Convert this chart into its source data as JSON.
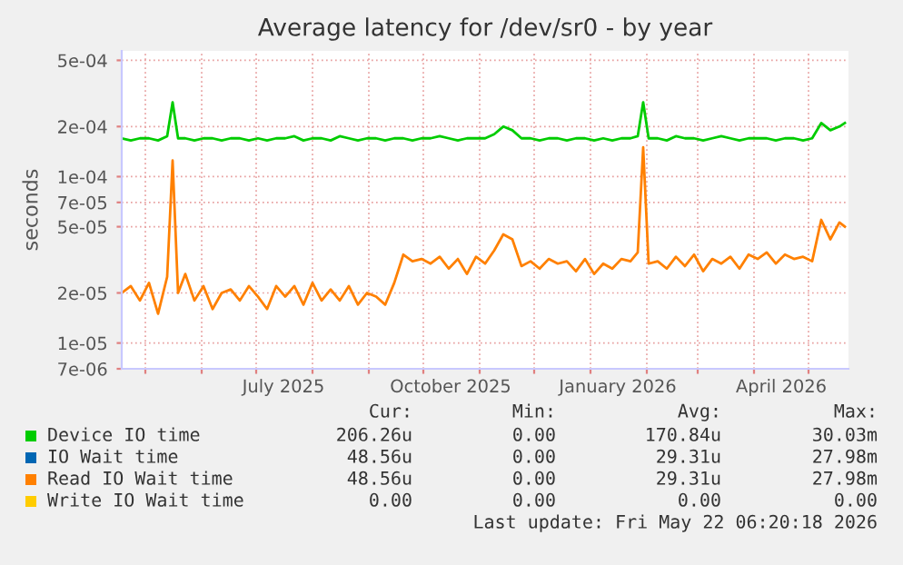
{
  "chart_data": {
    "type": "line",
    "title": "Average latency for /dev/sr0 - by year",
    "ylabel": "seconds",
    "log": "y",
    "grid": true,
    "legend": "bottom",
    "marker": "none",
    "line_style": "solid",
    "xlim": [
      "2025-04-18",
      "2026-05-23"
    ],
    "ylim": [
      7e-06,
      0.00057
    ],
    "xticks": [
      {
        "value": "2025-05-01",
        "label": null
      },
      {
        "value": "2025-06-01",
        "label": null
      },
      {
        "value": "2025-07-01",
        "label": null
      },
      {
        "value": "2025-08-01",
        "label": null
      },
      {
        "value": "2025-09-01",
        "label": null
      },
      {
        "value": "2025-10-01",
        "label": null
      },
      {
        "value": "2025-11-01",
        "label": null
      },
      {
        "value": "2025-12-01",
        "label": null
      },
      {
        "value": "2026-01-01",
        "label": null
      },
      {
        "value": "2026-02-01",
        "label": null
      },
      {
        "value": "2026-03-01",
        "label": null
      },
      {
        "value": "2026-04-01",
        "label": null
      },
      {
        "value": "2026-05-01",
        "label": null
      },
      {
        "value": "2025-07-16",
        "label": "July 2025"
      },
      {
        "value": "2025-10-16",
        "label": "October 2025"
      },
      {
        "value": "2026-01-16",
        "label": "January 2026"
      },
      {
        "value": "2026-04-16",
        "label": "April 2026"
      }
    ],
    "yticks": [
      {
        "value": 7e-06,
        "label": "7e-06"
      },
      {
        "value": 1e-05,
        "label": "1e-05"
      },
      {
        "value": 2e-05,
        "label": "2e-05"
      },
      {
        "value": 5e-05,
        "label": "5e-05"
      },
      {
        "value": 7e-05,
        "label": "7e-05"
      },
      {
        "value": 0.0001,
        "label": "1e-04"
      },
      {
        "value": 0.0002,
        "label": "2e-04"
      },
      {
        "value": 0.0005,
        "label": "5e-04"
      }
    ],
    "x": [
      "2025-04-18",
      "2025-04-23",
      "2025-04-28",
      "2025-05-03",
      "2025-05-08",
      "2025-05-13",
      "2025-05-16",
      "2025-05-19",
      "2025-05-23",
      "2025-05-28",
      "2025-06-02",
      "2025-06-07",
      "2025-06-12",
      "2025-06-17",
      "2025-06-22",
      "2025-06-27",
      "2025-07-02",
      "2025-07-07",
      "2025-07-12",
      "2025-07-17",
      "2025-07-22",
      "2025-07-27",
      "2025-08-01",
      "2025-08-06",
      "2025-08-11",
      "2025-08-16",
      "2025-08-21",
      "2025-08-26",
      "2025-08-31",
      "2025-09-05",
      "2025-09-10",
      "2025-09-15",
      "2025-09-20",
      "2025-09-25",
      "2025-09-30",
      "2025-10-05",
      "2025-10-10",
      "2025-10-15",
      "2025-10-20",
      "2025-10-25",
      "2025-10-30",
      "2025-11-04",
      "2025-11-09",
      "2025-11-14",
      "2025-11-19",
      "2025-11-24",
      "2025-11-29",
      "2025-12-04",
      "2025-12-09",
      "2025-12-14",
      "2025-12-19",
      "2025-12-24",
      "2025-12-29",
      "2026-01-03",
      "2026-01-08",
      "2026-01-13",
      "2026-01-18",
      "2026-01-23",
      "2026-01-27",
      "2026-01-30",
      "2026-02-02",
      "2026-02-07",
      "2026-02-12",
      "2026-02-17",
      "2026-02-22",
      "2026-02-27",
      "2026-03-04",
      "2026-03-09",
      "2026-03-14",
      "2026-03-19",
      "2026-03-24",
      "2026-03-29",
      "2026-04-03",
      "2026-04-08",
      "2026-04-13",
      "2026-04-18",
      "2026-04-23",
      "2026-04-28",
      "2026-05-03",
      "2026-05-08",
      "2026-05-13",
      "2026-05-18",
      "2026-05-21"
    ],
    "series": [
      {
        "name": "Device IO time",
        "color": "#00cc00",
        "values": [
          0.00017,
          0.000165,
          0.00017,
          0.00017,
          0.000165,
          0.000175,
          0.00028,
          0.00017,
          0.00017,
          0.000165,
          0.00017,
          0.00017,
          0.000165,
          0.00017,
          0.00017,
          0.000165,
          0.00017,
          0.000165,
          0.00017,
          0.00017,
          0.000175,
          0.000165,
          0.00017,
          0.00017,
          0.000165,
          0.000175,
          0.00017,
          0.000165,
          0.00017,
          0.00017,
          0.000165,
          0.00017,
          0.00017,
          0.000165,
          0.00017,
          0.00017,
          0.000175,
          0.00017,
          0.000165,
          0.00017,
          0.00017,
          0.00017,
          0.00018,
          0.0002,
          0.00019,
          0.00017,
          0.00017,
          0.000165,
          0.00017,
          0.00017,
          0.000165,
          0.00017,
          0.00017,
          0.000165,
          0.00017,
          0.000165,
          0.00017,
          0.00017,
          0.000175,
          0.00028,
          0.00017,
          0.00017,
          0.000165,
          0.000175,
          0.00017,
          0.00017,
          0.000165,
          0.00017,
          0.000175,
          0.00017,
          0.000165,
          0.00017,
          0.00017,
          0.00017,
          0.000165,
          0.00017,
          0.00017,
          0.000165,
          0.00017,
          0.00021,
          0.00019,
          0.0002,
          0.00021
        ]
      },
      {
        "name": "IO Wait time",
        "color": "#0066b3",
        "values": [
          null,
          null,
          null,
          null,
          null,
          null,
          null,
          null,
          null,
          null,
          null,
          null,
          null,
          null,
          null,
          null,
          null,
          null,
          null,
          null,
          null,
          null,
          null,
          null,
          null,
          null,
          null,
          null,
          null,
          null,
          null,
          null,
          null,
          null,
          null,
          null,
          null,
          null,
          null,
          null,
          null,
          null,
          null,
          null,
          null,
          null,
          null,
          null,
          null,
          null,
          null,
          null,
          null,
          null,
          null,
          null,
          null,
          null,
          null,
          null,
          null,
          null,
          null,
          null,
          null,
          null,
          null,
          null,
          null,
          null,
          null,
          null,
          null,
          null,
          null,
          null,
          null,
          null,
          null,
          null,
          null,
          null,
          null
        ]
      },
      {
        "name": "Read IO Wait time",
        "color": "#ff8000",
        "values": [
          2e-05,
          2.2e-05,
          1.8e-05,
          2.3e-05,
          1.5e-05,
          2.5e-05,
          0.000125,
          2e-05,
          2.6e-05,
          1.8e-05,
          2.2e-05,
          1.6e-05,
          2e-05,
          2.1e-05,
          1.8e-05,
          2.2e-05,
          1.9e-05,
          1.6e-05,
          2.2e-05,
          1.9e-05,
          2.2e-05,
          1.7e-05,
          2.3e-05,
          1.8e-05,
          2.1e-05,
          1.8e-05,
          2.2e-05,
          1.7e-05,
          2e-05,
          1.9e-05,
          1.7e-05,
          2.3e-05,
          3.4e-05,
          3.1e-05,
          3.2e-05,
          3e-05,
          3.3e-05,
          2.8e-05,
          3.2e-05,
          2.6e-05,
          3.3e-05,
          3e-05,
          3.6e-05,
          4.5e-05,
          4.2e-05,
          2.9e-05,
          3.1e-05,
          2.8e-05,
          3.2e-05,
          3e-05,
          3.1e-05,
          2.7e-05,
          3.2e-05,
          2.6e-05,
          3e-05,
          2.8e-05,
          3.2e-05,
          3.1e-05,
          3.5e-05,
          0.00015,
          3e-05,
          3.1e-05,
          2.8e-05,
          3.3e-05,
          2.9e-05,
          3.4e-05,
          2.7e-05,
          3.2e-05,
          3e-05,
          3.3e-05,
          2.8e-05,
          3.4e-05,
          3.2e-05,
          3.5e-05,
          3e-05,
          3.4e-05,
          3.2e-05,
          3.3e-05,
          3.1e-05,
          5.5e-05,
          4.2e-05,
          5.3e-05,
          5e-05
        ]
      },
      {
        "name": "Write IO Wait time",
        "color": "#ffcc00",
        "values": [
          null,
          null,
          null,
          null,
          null,
          null,
          null,
          null,
          null,
          null,
          null,
          null,
          null,
          null,
          null,
          null,
          null,
          null,
          null,
          null,
          null,
          null,
          null,
          null,
          null,
          null,
          null,
          null,
          null,
          null,
          null,
          null,
          null,
          null,
          null,
          null,
          null,
          null,
          null,
          null,
          null,
          null,
          null,
          null,
          null,
          null,
          null,
          null,
          null,
          null,
          null,
          null,
          null,
          null,
          null,
          null,
          null,
          null,
          null,
          null,
          null,
          null,
          null,
          null,
          null,
          null,
          null,
          null,
          null,
          null,
          null,
          null,
          null,
          null,
          null,
          null,
          null,
          null,
          null,
          null,
          null,
          null,
          null
        ]
      }
    ],
    "annotations": [
      "Cur:",
      "Min:",
      "Avg:",
      "Max:",
      "206.26u",
      "0.00",
      "170.84u",
      "30.03m",
      "48.56u",
      "0.00",
      "29.31u",
      "27.98m",
      "48.56u",
      "0.00",
      "29.31u",
      "27.98m",
      "0.00",
      "0.00",
      "0.00",
      "0.00",
      "Last update: Fri May 22 06:20:18 2026"
    ]
  }
}
